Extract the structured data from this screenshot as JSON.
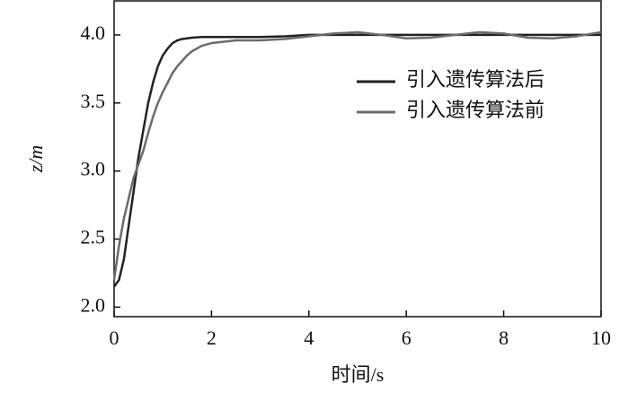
{
  "chart_data": {
    "type": "line",
    "xlabel": "时间/s",
    "ylabel": "z/m",
    "x": [
      0,
      0.1,
      0.2,
      0.3,
      0.4,
      0.5,
      0.6,
      0.7,
      0.8,
      0.9,
      1.0,
      1.1,
      1.2,
      1.3,
      1.4,
      1.5,
      1.6,
      1.8,
      2,
      2.5,
      3,
      3.5,
      4,
      4.5,
      5,
      5.5,
      6,
      6.5,
      7,
      7.5,
      8,
      8.5,
      9,
      9.5,
      10
    ],
    "series": [
      {
        "name": "引入遗传算法后",
        "color": "#222222",
        "values": [
          2.15,
          2.2,
          2.35,
          2.6,
          2.85,
          3.1,
          3.3,
          3.5,
          3.65,
          3.77,
          3.85,
          3.9,
          3.94,
          3.96,
          3.97,
          3.975,
          3.98,
          3.985,
          3.985,
          3.985,
          3.985,
          3.99,
          4.0,
          4.0,
          4.0,
          4.0,
          4.0,
          4.0,
          4.0,
          4.0,
          4.0,
          4.0,
          4.0,
          4.0,
          4.0
        ]
      },
      {
        "name": "引入遗传算法前",
        "color": "#6b6b6b",
        "values": [
          2.2,
          2.45,
          2.65,
          2.8,
          2.95,
          3.05,
          3.15,
          3.28,
          3.4,
          3.5,
          3.58,
          3.65,
          3.72,
          3.77,
          3.81,
          3.85,
          3.88,
          3.92,
          3.94,
          3.96,
          3.96,
          3.97,
          3.99,
          4.01,
          4.02,
          4.0,
          3.975,
          3.98,
          4.0,
          4.02,
          4.01,
          3.98,
          3.975,
          3.99,
          4.02
        ]
      }
    ],
    "xlim": [
      0,
      10
    ],
    "xticks": [
      0,
      2,
      4,
      6,
      8,
      10
    ],
    "ylim": [
      1.93,
      4.25
    ],
    "yticks": [
      {
        "value": 2,
        "label": "2.0"
      },
      {
        "value": 2.5,
        "label": "2.5"
      },
      {
        "value": 3,
        "label": "3.0"
      },
      {
        "value": 3.5,
        "label": "3.5"
      },
      {
        "value": 4,
        "label": "4.0"
      }
    ],
    "legend": "upper-right",
    "grid": false
  }
}
